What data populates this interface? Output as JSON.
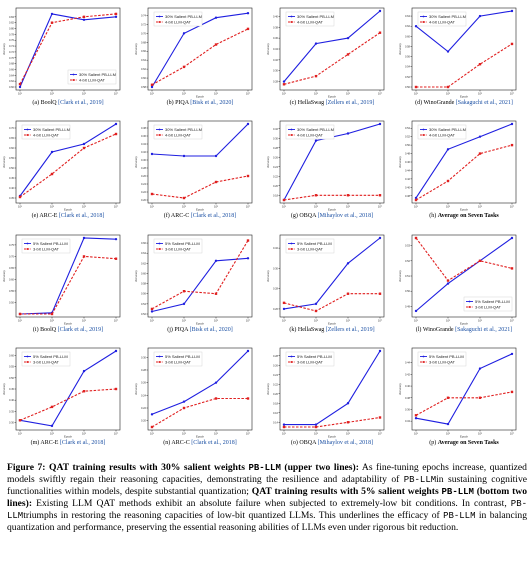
{
  "chart_data": [
    {
      "type": "line",
      "caption_letter": "(a)",
      "dataset": "BoolQ",
      "citation": "Clark et al., 2019",
      "xlabel": "",
      "ylabel": "Accuracy",
      "x": [
        "10¹",
        "10²",
        "10³",
        "10⁴"
      ],
      "y_ticks": [
        "0.60",
        "0.62",
        "0.64",
        "0.66",
        "0.68",
        "0.70",
        "0.72",
        "0.74",
        "0.76",
        "0.78",
        "0.80",
        "0.82",
        "0.84"
      ],
      "ylim": [
        0.6,
        0.86
      ],
      "legend_pos": "bottom-right",
      "series": [
        {
          "name": "30% Salient PB-LLM",
          "values": [
            0.6,
            0.85,
            0.83,
            0.84
          ]
        },
        {
          "name": "4-bit LLM-QAT",
          "values": [
            0.61,
            0.82,
            0.84,
            0.85
          ]
        }
      ]
    },
    {
      "type": "line",
      "caption_letter": "(b)",
      "dataset": "PIQA",
      "citation": "Bisk et al., 2020",
      "xlabel": "Epoch",
      "ylabel": "Accuracy",
      "x": [
        "10¹",
        "10²",
        "10³",
        "10⁴"
      ],
      "y_ticks": [
        "0.58",
        "0.60",
        "0.62",
        "0.64",
        "0.66",
        "0.68",
        "0.70",
        "0.72",
        "0.74"
      ],
      "ylim": [
        0.58,
        0.75
      ],
      "legend_pos": "top-left",
      "series": [
        {
          "name": "30% Salient PB-LLM",
          "values": [
            0.58,
            0.7,
            0.735,
            0.745
          ]
        },
        {
          "name": "4-bit LLM-QAT",
          "values": [
            0.585,
            0.625,
            0.675,
            0.71
          ]
        }
      ]
    },
    {
      "type": "line",
      "caption_letter": "(c)",
      "dataset": "HellaSwag",
      "citation": "Zellers et al., 2019",
      "xlabel": "Epoch",
      "ylabel": "Accuracy",
      "x": [
        "10¹",
        "10²",
        "10³",
        "10⁴"
      ],
      "y_ticks": [
        "0.28",
        "0.30",
        "0.32",
        "0.34",
        "0.36",
        "0.38",
        "0.40"
      ],
      "ylim": [
        0.27,
        0.41
      ],
      "legend_pos": "top-left",
      "series": [
        {
          "name": "30% Salient PB-LLM",
          "values": [
            0.28,
            0.35,
            0.36,
            0.41
          ]
        },
        {
          "name": "4-bit LLM-QAT",
          "values": [
            0.275,
            0.29,
            0.33,
            0.37
          ]
        }
      ]
    },
    {
      "type": "line",
      "caption_letter": "(d)",
      "dataset": "WinoGrande",
      "citation": "Sakaguchi et al., 2021",
      "xlabel": "Epoch",
      "ylabel": "Accuracy",
      "x": [
        "10¹",
        "10²",
        "10³",
        "10⁴"
      ],
      "y_ticks": [
        "0.50",
        "0.52",
        "0.54",
        "0.56",
        "0.58",
        "0.60",
        "0.62",
        "0.64"
      ],
      "ylim": [
        0.5,
        0.65
      ],
      "legend_pos": "top-left",
      "series": [
        {
          "name": "30% Salient PB-LLM",
          "values": [
            0.62,
            0.57,
            0.64,
            0.65
          ]
        },
        {
          "name": "4-bit LLM-QAT",
          "values": [
            0.5,
            0.5,
            0.545,
            0.585
          ]
        }
      ]
    },
    {
      "type": "line",
      "caption_letter": "(e)",
      "dataset": "ARC-E",
      "citation": "Clark et al., 2018",
      "xlabel": "Epoch",
      "ylabel": "Accuracy",
      "x": [
        "10¹",
        "10²",
        "10³",
        "10⁴"
      ],
      "y_ticks": [
        "0.35",
        "0.40",
        "0.45",
        "0.50",
        "0.55",
        "0.60",
        "0.65",
        "0.70"
      ],
      "ylim": [
        0.34,
        0.72
      ],
      "legend_pos": "top-left",
      "series": [
        {
          "name": "30% Salient PB-LLM",
          "values": [
            0.36,
            0.58,
            0.62,
            0.72
          ]
        },
        {
          "name": "4-bit LLM-QAT",
          "values": [
            0.355,
            0.47,
            0.6,
            0.67
          ]
        }
      ]
    },
    {
      "type": "line",
      "caption_letter": "(f)",
      "dataset": "ARC-C",
      "citation": "Clark et al., 2018",
      "xlabel": "Epoch",
      "ylabel": "Accuracy",
      "x": [
        "10¹",
        "10²",
        "10³",
        "10⁴"
      ],
      "y_ticks": [
        "0.20",
        "0.22",
        "0.24",
        "0.26",
        "0.28",
        "0.30",
        "0.32",
        "0.34",
        "0.36",
        "0.38"
      ],
      "ylim": [
        0.2,
        0.39
      ],
      "legend_pos": "top-left",
      "series": [
        {
          "name": "30% Salient PB-LLM",
          "values": [
            0.315,
            0.31,
            0.31,
            0.39
          ]
        },
        {
          "name": "4-bit LLM-QAT",
          "values": [
            0.215,
            0.205,
            0.245,
            0.26
          ]
        }
      ]
    },
    {
      "type": "line",
      "caption_letter": "(g)",
      "dataset": "OBQA",
      "citation": "Mihaylov et al., 2018",
      "xlabel": "Epoch",
      "ylabel": "Accuracy",
      "x": [
        "10¹",
        "10²",
        "10³",
        "10⁴"
      ],
      "y_ticks": [
        "0.18",
        "0.20",
        "0.22",
        "0.24",
        "0.26",
        "0.28",
        "0.30",
        "0.32"
      ],
      "ylim": [
        0.17,
        0.33
      ],
      "legend_pos": "top-left",
      "series": [
        {
          "name": "30% Salient PB-LLM",
          "values": [
            0.17,
            0.295,
            0.31,
            0.33
          ]
        },
        {
          "name": "4-bit LLM-QAT",
          "values": [
            0.17,
            0.18,
            0.18,
            0.18
          ]
        }
      ]
    },
    {
      "type": "line",
      "caption_letter": "(h)",
      "dataset": "Average on Seven Tasks",
      "citation": "",
      "xlabel": "Epoch",
      "ylabel": "Accuracy",
      "x": [
        "10¹",
        "10²",
        "10³",
        "10⁴"
      ],
      "y_ticks": [
        "0.38",
        "0.40",
        "0.42",
        "0.44",
        "0.46",
        "0.48",
        "0.50",
        "0.52",
        "0.54"
      ],
      "ylim": [
        0.37,
        0.55
      ],
      "legend_pos": "top-left",
      "series": [
        {
          "name": "30% Salient PB-LLM",
          "values": [
            0.375,
            0.49,
            0.52,
            0.55
          ]
        },
        {
          "name": "4-bit LLM-QAT",
          "values": [
            0.37,
            0.415,
            0.48,
            0.5
          ]
        }
      ]
    },
    {
      "type": "line",
      "caption_letter": "(i)",
      "dataset": "BoolQ",
      "citation": "Clark et al., 2019",
      "xlabel": "Epoch",
      "ylabel": "Accuracy",
      "x": [
        "10¹",
        "10²",
        "10³",
        "10⁴"
      ],
      "y_ticks": [
        "0.50",
        "0.55",
        "0.60",
        "0.65",
        "0.70",
        "0.75"
      ],
      "ylim": [
        0.45,
        0.78
      ],
      "legend_pos": "top-left",
      "series": [
        {
          "name": "5% Salient PB-LLM",
          "values": [
            0.45,
            0.455,
            0.78,
            0.775
          ]
        },
        {
          "name": "3-bit LLM-QAT",
          "values": [
            0.45,
            0.45,
            0.7,
            0.69
          ]
        }
      ]
    },
    {
      "type": "line",
      "caption_letter": "(j)",
      "dataset": "PIQA",
      "citation": "Bisk et al., 2020",
      "xlabel": "Epoch",
      "ylabel": "Accuracy",
      "x": [
        "10¹",
        "10²",
        "10³",
        "10⁴"
      ],
      "y_ticks": [
        "0.52",
        "0.54",
        "0.56",
        "0.58",
        "0.60",
        "0.62",
        "0.64",
        "0.66"
      ],
      "ylim": [
        0.52,
        0.67
      ],
      "legend_pos": "top-left",
      "series": [
        {
          "name": "5% Salient PB-LLM",
          "values": [
            0.525,
            0.54,
            0.625,
            0.63
          ]
        },
        {
          "name": "3-bit LLM-QAT",
          "values": [
            0.53,
            0.565,
            0.56,
            0.665
          ]
        }
      ]
    },
    {
      "type": "line",
      "caption_letter": "(k)",
      "dataset": "HellaSwag",
      "citation": "Zellers et al., 2019",
      "xlabel": "Epoch",
      "ylabel": "Accuracy",
      "x": [
        "10¹",
        "10²",
        "10³",
        "10⁴"
      ],
      "y_ticks": [
        "0.26",
        "0.28",
        "0.30",
        "0.32"
      ],
      "ylim": [
        0.255,
        0.33
      ],
      "legend_pos": "top-left",
      "series": [
        {
          "name": "5% Salient PB-LLM",
          "values": [
            0.26,
            0.265,
            0.305,
            0.33
          ]
        },
        {
          "name": "3-bit LLM-QAT",
          "values": [
            0.266,
            0.258,
            0.275,
            0.275
          ]
        }
      ]
    },
    {
      "type": "line",
      "caption_letter": "(l)",
      "dataset": "WinoGrande",
      "citation": "Sakaguchi et al., 2021",
      "xlabel": "Epoch",
      "ylabel": "Accuracy",
      "x": [
        "10¹",
        "10²",
        "10³",
        "10⁴"
      ],
      "y_ticks": [
        "0.49",
        "0.50",
        "0.51",
        "0.52",
        "0.53"
      ],
      "ylim": [
        0.485,
        0.535
      ],
      "legend_pos": "bottom-right",
      "series": [
        {
          "name": "5% Salient PB-LLM",
          "values": [
            0.487,
            0.505,
            0.52,
            0.535
          ]
        },
        {
          "name": "3-bit LLM-QAT",
          "values": [
            0.535,
            0.507,
            0.52,
            0.515
          ]
        }
      ]
    },
    {
      "type": "line",
      "caption_letter": "(m)",
      "dataset": "ARC-E",
      "citation": "Clark et al., 2018",
      "xlabel": "Epoch",
      "ylabel": "Accuracy",
      "x": [
        "10¹",
        "10²",
        "10³",
        "10⁴"
      ],
      "y_ticks": [
        "0.30",
        "0.35",
        "0.40",
        "0.45",
        "0.50",
        "0.55",
        "0.60"
      ],
      "ylim": [
        0.28,
        0.62
      ],
      "legend_pos": "top-left",
      "series": [
        {
          "name": "5% Salient PB-LLM",
          "values": [
            0.31,
            0.285,
            0.53,
            0.62
          ]
        },
        {
          "name": "3-bit LLM-QAT",
          "values": [
            0.31,
            0.37,
            0.44,
            0.45
          ]
        }
      ]
    },
    {
      "type": "line",
      "caption_letter": "(n)",
      "dataset": "ARC-C",
      "citation": "Clark et al., 2018",
      "xlabel": "Epoch",
      "ylabel": "Accuracy",
      "x": [
        "10¹",
        "10²",
        "10³",
        "10⁴"
      ],
      "y_ticks": [
        "0.20",
        "0.22",
        "0.24",
        "0.26",
        "0.28",
        "0.30"
      ],
      "ylim": [
        0.19,
        0.31
      ],
      "legend_pos": "top-left",
      "series": [
        {
          "name": "5% Salient PB-LLM",
          "values": [
            0.21,
            0.23,
            0.26,
            0.31
          ]
        },
        {
          "name": "3-bit LLM-QAT",
          "values": [
            0.19,
            0.22,
            0.235,
            0.235
          ]
        }
      ]
    },
    {
      "type": "line",
      "caption_letter": "(o)",
      "dataset": "OBQA",
      "citation": "Mihaylov et al., 2018",
      "xlabel": "Epoch",
      "ylabel": "Accuracy",
      "x": [
        "10¹",
        "10²",
        "10³",
        "10⁴"
      ],
      "y_ticks": [
        "0.14",
        "0.16",
        "0.18",
        "0.20",
        "0.22",
        "0.24",
        "0.26",
        "0.28"
      ],
      "ylim": [
        0.13,
        0.29
      ],
      "legend_pos": "top-left",
      "series": [
        {
          "name": "5% Salient PB-LLM",
          "values": [
            0.135,
            0.135,
            0.18,
            0.29
          ]
        },
        {
          "name": "3-bit LLM-QAT",
          "values": [
            0.13,
            0.13,
            0.14,
            0.15
          ]
        }
      ]
    },
    {
      "type": "line",
      "caption_letter": "(p)",
      "dataset": "Average on Seven Tasks",
      "citation": "",
      "xlabel": "Epoch",
      "ylabel": "Accuracy",
      "x": [
        "10¹",
        "10²",
        "10³",
        "10⁴"
      ],
      "y_ticks": [
        "0.34",
        "0.36",
        "0.38",
        "0.40",
        "0.42",
        "0.44"
      ],
      "ylim": [
        0.33,
        0.46
      ],
      "legend_pos": "top-left",
      "series": [
        {
          "name": "5% Salient PB-LLM",
          "values": [
            0.345,
            0.335,
            0.43,
            0.455
          ]
        },
        {
          "name": "3-bit LLM-QAT",
          "values": [
            0.35,
            0.38,
            0.38,
            0.39
          ]
        }
      ]
    }
  ],
  "caption": {
    "fig_label": "Figure 7:",
    "s1_bold": "QAT training results with 30% salient weights ",
    "s1_mono": "PB-LLM",
    "s1_bold_end": " (upper two lines):",
    "s2": " As fine-tuning epochs increase, quantized models swiftly regain their reasoning capacities, demonstrating the resilience and adaptability of ",
    "s2_mono": "PB-LLM",
    "s3": "in sustaining cognitive functionalities within models, despite substantial quantization; ",
    "s4_bold": "QAT training results with 5% salient weights ",
    "s4_mono": "PB-LLM",
    "s4_bold_end": " (bottom two lines):",
    "s5": " Existing LLM QAT methods exhibit an absolute failure when subjected to extremely-low bit conditions. In contrast, ",
    "s5_mono": "PB-LLM",
    "s6": "triumphs in restoring the reasoning capacities of low-bit quantized LLMs. This underlines the efficacy of ",
    "s6_mono": "PB-LLM",
    "s7": " in balancing quantization and performance, preserving the essential reasoning abilities of LLMs even under rigorous bit reduction."
  },
  "colors": {
    "pb_llm": "#1f1fe0",
    "llm_qat": "#e01f1f"
  }
}
